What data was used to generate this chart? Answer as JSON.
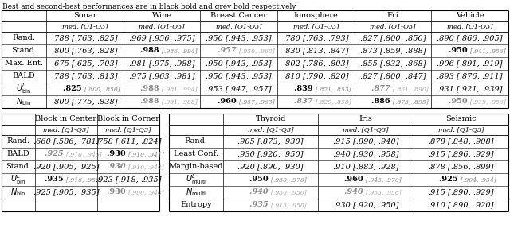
{
  "caption": "Best and second-best performances are in black bold and grey bold respectively.",
  "table1": {
    "columns": [
      "",
      "Sonar",
      "Wine",
      "Breast Cancer",
      "Ionosphere",
      "Fri",
      "Vehicle"
    ],
    "subheader": [
      "",
      "med. [Q1-Q3]",
      "med. [Q1-Q3]",
      "med. [Q1-Q3]",
      "med. [Q1-Q3]",
      "med. [Q1-Q3]",
      "med. [Q1-Q3]"
    ],
    "rows": [
      {
        "label": "Rand.",
        "cells": [
          {
            "main": ".788",
            "bracket": "[.763, .825]",
            "bold": false,
            "grey": false
          },
          {
            "main": ".969",
            "bracket": "[.956, .975]",
            "bold": false,
            "grey": false
          },
          {
            "main": ".950",
            "bracket": "[.943, .953]",
            "bold": false,
            "grey": false
          },
          {
            "main": ".780",
            "bracket": "[.763, .793]",
            "bold": false,
            "grey": false
          },
          {
            "main": ".827",
            "bracket": "[.800, .850]",
            "bold": false,
            "grey": false
          },
          {
            "main": ".890",
            "bracket": "[.866, .905]",
            "bold": false,
            "grey": false
          }
        ]
      },
      {
        "label": "Stand.",
        "cells": [
          {
            "main": ".800",
            "bracket": "[.763, .828]",
            "bold": false,
            "grey": false
          },
          {
            "main": ".988",
            "bracket": "[.986, .994]",
            "bold": true,
            "grey": false
          },
          {
            "main": ".957",
            "bracket": "[.950, .960]",
            "bold": false,
            "grey": true
          },
          {
            "main": ".830",
            "bracket": "[.813, .847]",
            "bold": false,
            "grey": false
          },
          {
            "main": ".873",
            "bracket": "[.859, .888]",
            "bold": false,
            "grey": false
          },
          {
            "main": ".950",
            "bracket": "[.941, .956]",
            "bold": true,
            "grey": false
          }
        ]
      },
      {
        "label": "Max. Ent.",
        "cells": [
          {
            "main": ".675",
            "bracket": "[.625, .703]",
            "bold": false,
            "grey": false
          },
          {
            "main": ".981",
            "bracket": "[.975, .988]",
            "bold": false,
            "grey": false
          },
          {
            "main": ".950",
            "bracket": "[.943, .953]",
            "bold": false,
            "grey": false
          },
          {
            "main": ".802",
            "bracket": "[.786, .803]",
            "bold": false,
            "grey": false
          },
          {
            "main": ".855",
            "bracket": "[.832, .868]",
            "bold": false,
            "grey": false
          },
          {
            "main": ".906",
            "bracket": "[.891, .919]",
            "bold": false,
            "grey": false
          }
        ]
      },
      {
        "label": "BALD",
        "cells": [
          {
            "main": ".788",
            "bracket": "[.763, .813]",
            "bold": false,
            "grey": false
          },
          {
            "main": ".975",
            "bracket": "[.963, .981]",
            "bold": false,
            "grey": false
          },
          {
            "main": ".950",
            "bracket": "[.943, .953]",
            "bold": false,
            "grey": false
          },
          {
            "main": ".810",
            "bracket": "[.790, .820]",
            "bold": false,
            "grey": false
          },
          {
            "main": ".827",
            "bracket": "[.800, .847]",
            "bold": false,
            "grey": false
          },
          {
            "main": ".893",
            "bracket": "[.876, .911]",
            "bold": false,
            "grey": false
          }
        ]
      },
      {
        "label": "U_bin^L",
        "cells": [
          {
            "main": ".825",
            "bracket": "[.800, .850]",
            "bold": true,
            "grey": false
          },
          {
            "main": ".988",
            "bracket": "[.981, .994]",
            "bold": true,
            "grey": true
          },
          {
            "main": ".953",
            "bracket": "[.947, .957]",
            "bold": false,
            "grey": false
          },
          {
            "main": ".839",
            "bracket": "[.821, .853]",
            "bold": true,
            "grey": false
          },
          {
            "main": ".877",
            "bracket": "[.861, .890]",
            "bold": false,
            "grey": true
          },
          {
            "main": ".931",
            "bracket": "[.921, .939]",
            "bold": false,
            "grey": false
          }
        ]
      },
      {
        "label": "N_bin",
        "cells": [
          {
            "main": ".800",
            "bracket": "[.775, .838]",
            "bold": false,
            "grey": false
          },
          {
            "main": ".988",
            "bracket": "[.981, .988]",
            "bold": true,
            "grey": true
          },
          {
            "main": ".960",
            "bracket": "[.957, .963]",
            "bold": true,
            "grey": false
          },
          {
            "main": ".837",
            "bracket": "[.820, .850]",
            "bold": false,
            "grey": true
          },
          {
            "main": ".886",
            "bracket": "[.873, .895]",
            "bold": true,
            "grey": false
          },
          {
            "main": ".950",
            "bracket": "[.939, .956]",
            "bold": true,
            "grey": true
          }
        ]
      }
    ]
  },
  "table2_left": {
    "columns": [
      "",
      "Block in Center",
      "Block in Corner"
    ],
    "subheader": [
      "",
      "med. [Q1-Q3]",
      "med. [Q1-Q3]"
    ],
    "rows": [
      {
        "label": "Rand.",
        "cells": [
          {
            "main": ".660",
            "bracket": "[.586, .781]",
            "bold": false,
            "grey": false
          },
          {
            "main": ".758",
            "bracket": "[.611, .824]",
            "bold": false,
            "grey": false
          }
        ]
      },
      {
        "label": "BALD",
        "cells": [
          {
            "main": ".925",
            "bracket": "[.910, .940]",
            "bold": false,
            "grey": true
          },
          {
            "main": ".930",
            "bracket": "[.910, .941]",
            "bold": true,
            "grey": false
          }
        ]
      },
      {
        "label": "Stand.",
        "cells": [
          {
            "main": ".920",
            "bracket": "[.905, .925]",
            "bold": false,
            "grey": false
          },
          {
            "main": ".930",
            "bracket": "[.910, .940]",
            "bold": false,
            "grey": true
          }
        ]
      },
      {
        "label": "U_bin^L",
        "cells": [
          {
            "main": ".935",
            "bracket": "[.916, .955]",
            "bold": true,
            "grey": false
          },
          {
            "main": ".923",
            "bracket": "[.918, .935]",
            "bold": false,
            "grey": false
          }
        ]
      },
      {
        "label": "N_bin",
        "cells": [
          {
            "main": ".925",
            "bracket": "[.905, .935]",
            "bold": false,
            "grey": false
          },
          {
            "main": ".930",
            "bracket": "[.900, .940]",
            "bold": true,
            "grey": true
          }
        ]
      },
      {
        "label": "",
        "cells": [
          {
            "main": "",
            "bracket": "",
            "bold": false,
            "grey": false
          },
          {
            "main": "",
            "bracket": "",
            "bold": false,
            "grey": false
          }
        ]
      }
    ]
  },
  "table2_right": {
    "columns": [
      "",
      "Thyroid",
      "Iris",
      "Seismic"
    ],
    "subheader": [
      "",
      "med. [Q1-Q3]",
      "med. [Q1-Q3]",
      "med. [Q1-Q3]"
    ],
    "rows": [
      {
        "label": "Rand.",
        "cells": [
          {
            "main": ".905",
            "bracket": "[.873, .930]",
            "bold": false,
            "grey": false
          },
          {
            "main": ".915",
            "bracket": "[.890, .940]",
            "bold": false,
            "grey": false
          },
          {
            "main": ".878",
            "bracket": "[.848, .908]",
            "bold": false,
            "grey": false
          }
        ]
      },
      {
        "label": "Least Conf.",
        "cells": [
          {
            "main": ".930",
            "bracket": "[.920, .950]",
            "bold": false,
            "grey": false
          },
          {
            "main": ".940",
            "bracket": "[.930, .958]",
            "bold": false,
            "grey": false
          },
          {
            "main": ".915",
            "bracket": "[.896, .929]",
            "bold": false,
            "grey": false
          }
        ]
      },
      {
        "label": "Margin-based",
        "cells": [
          {
            "main": ".920",
            "bracket": "[.890, .930]",
            "bold": false,
            "grey": false
          },
          {
            "main": ".910",
            "bracket": "[.883, .928]",
            "bold": false,
            "grey": false
          },
          {
            "main": ".878",
            "bracket": "[.856, .899]",
            "bold": false,
            "grey": false
          }
        ]
      },
      {
        "label": "U_multi^L",
        "cells": [
          {
            "main": ".950",
            "bracket": "[.930, .970]",
            "bold": true,
            "grey": false
          },
          {
            "main": ".960",
            "bracket": "[.945, .970]",
            "bold": true,
            "grey": false
          },
          {
            "main": ".925",
            "bracket": "[.904, .934]",
            "bold": true,
            "grey": false
          }
        ]
      },
      {
        "label": "N_multi",
        "cells": [
          {
            "main": ".940",
            "bracket": "[.930, .950]",
            "bold": false,
            "grey": true
          },
          {
            "main": ".940",
            "bracket": "[.933, .958]",
            "bold": false,
            "grey": true
          },
          {
            "main": ".915",
            "bracket": "[.890, .929]",
            "bold": false,
            "grey": false
          }
        ]
      },
      {
        "label": "Entropy",
        "cells": [
          {
            "main": ".935",
            "bracket": "[.913, .950]",
            "bold": false,
            "grey": true
          },
          {
            "main": ".930",
            "bracket": "[.920, .950]",
            "bold": false,
            "grey": false
          },
          {
            "main": ".910",
            "bracket": "[.890, .920]",
            "bold": false,
            "grey": false
          }
        ]
      }
    ]
  }
}
